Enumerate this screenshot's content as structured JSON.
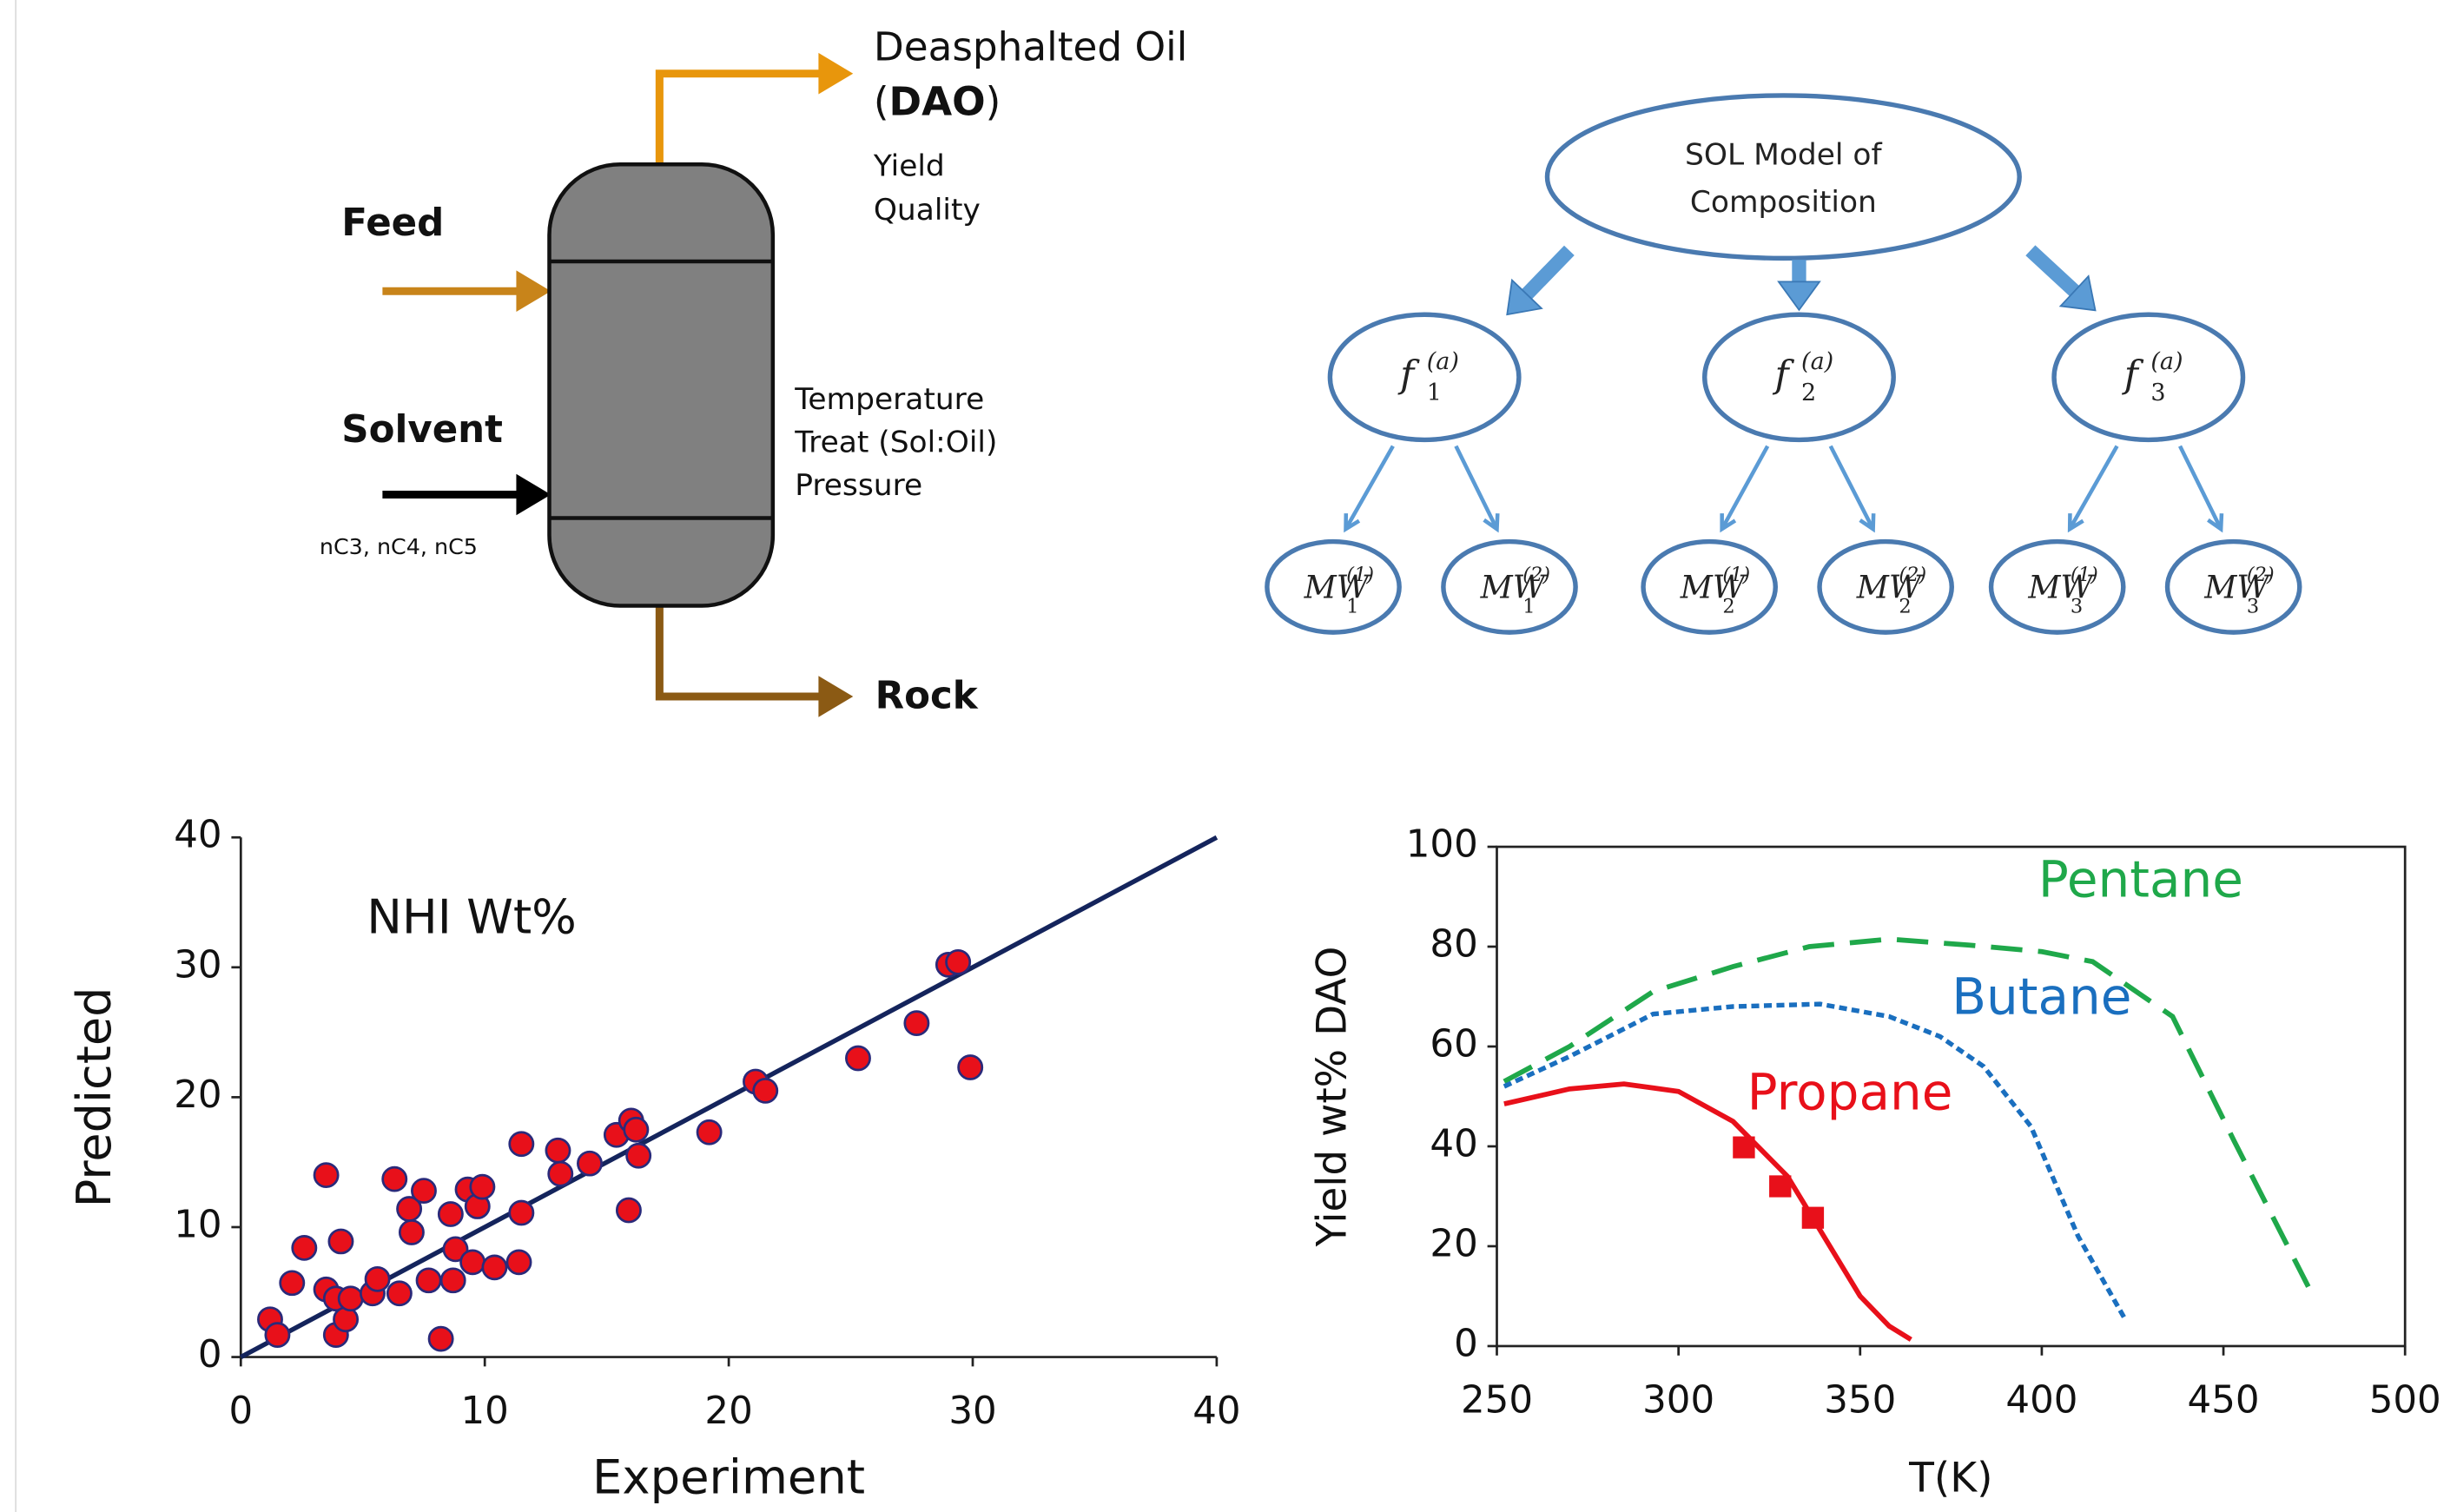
{
  "process": {
    "product_lines": [
      "Deasphalted Oil",
      "(",
      "DAO",
      ")"
    ],
    "product_props": [
      "Yield",
      "Quality"
    ],
    "feed": "Feed",
    "solvent": "Solvent",
    "solvent_types": "nC3, nC4, nC5",
    "conditions": [
      "Temperature",
      "Treat (Sol:Oil)",
      "Pressure"
    ],
    "bottom": "Rock"
  },
  "tree": {
    "root": [
      "SOL Model of",
      "Composition"
    ],
    "fractions": [
      {
        "base": "f",
        "sub": "1",
        "sup": "(a)",
        "children": [
          {
            "base": "MW",
            "sub": "1",
            "sup": "(1)"
          },
          {
            "base": "MW",
            "sub": "1",
            "sup": "(2)"
          }
        ]
      },
      {
        "base": "f",
        "sub": "2",
        "sup": "(a)",
        "children": [
          {
            "base": "MW",
            "sub": "2",
            "sup": "(1)"
          },
          {
            "base": "MW",
            "sub": "2",
            "sup": "(2)"
          }
        ]
      },
      {
        "base": "f",
        "sub": "3",
        "sup": "(a)",
        "children": [
          {
            "base": "MW",
            "sub": "3",
            "sup": "(1)"
          },
          {
            "base": "MW",
            "sub": "3",
            "sup": "(2)"
          }
        ]
      }
    ]
  },
  "chart_data": [
    {
      "type": "scatter",
      "annotation": "NHI Wt%",
      "x_label": "Experiment",
      "y_label": "Predicted",
      "x": [
        1.2,
        1.5,
        2.1,
        2.6,
        3.5,
        3.5,
        3.9,
        4.1,
        3.9,
        4.3,
        4.5,
        5.4,
        5.6,
        6.3,
        6.5,
        6.9,
        7.0,
        7.5,
        7.7,
        8.2,
        8.6,
        8.7,
        8.8,
        9.3,
        9.5,
        9.7,
        9.9,
        10.4,
        11.4,
        11.5,
        11.5,
        13.0,
        13.1,
        14.3,
        15.4,
        16.0,
        16.2,
        15.9,
        16.3,
        19.2,
        21.1,
        21.5,
        25.3,
        27.7,
        29.0,
        29.4,
        29.9
      ],
      "values": [
        2.9,
        1.7,
        5.7,
        8.4,
        14.0,
        5.2,
        4.5,
        8.9,
        1.7,
        2.9,
        4.5,
        4.9,
        6.0,
        13.7,
        4.9,
        11.4,
        9.6,
        12.8,
        5.9,
        1.4,
        11.0,
        5.9,
        8.3,
        12.9,
        7.3,
        11.6,
        13.1,
        6.9,
        7.3,
        11.1,
        16.4,
        15.9,
        14.1,
        14.9,
        17.1,
        18.2,
        17.5,
        11.3,
        15.5,
        17.3,
        21.2,
        20.5,
        23.0,
        25.7,
        30.2,
        30.4,
        22.3
      ],
      "color": "#e8101a",
      "edge_color": "#2a2a7a",
      "reference_line": {
        "x": [
          0,
          40
        ],
        "values": [
          0,
          40
        ],
        "color": "#14245c"
      },
      "xlim": [
        0,
        40
      ],
      "xticks": [
        0,
        10,
        20,
        30,
        40
      ],
      "ylim": [
        0,
        40
      ],
      "yticks": [
        0,
        10,
        20,
        30,
        40
      ]
    },
    {
      "type": "line",
      "x_label": "T(K)",
      "y_label": "Yield wt% DAO",
      "series": [
        {
          "name": "Pentane",
          "color": "#1fa84a",
          "dash": "dashed",
          "x": [
            252,
            270,
            293,
            315,
            336,
            358,
            380,
            400,
            414,
            436,
            453,
            474
          ],
          "values": [
            53,
            60,
            71,
            76,
            80,
            81.5,
            80.3,
            79,
            77,
            66,
            41,
            11
          ]
        },
        {
          "name": "Butane",
          "color": "#1a6fbf",
          "dash": "dotted",
          "x": [
            252,
            270,
            293,
            315,
            339,
            358,
            372,
            384,
            397,
            410,
            423
          ],
          "values": [
            52,
            58,
            66.5,
            68,
            68.5,
            66,
            62,
            56,
            44,
            22,
            5.3
          ]
        },
        {
          "name": "Propane",
          "color": "#e8101a",
          "dash": "solid",
          "x": [
            252,
            270,
            285,
            300,
            315,
            330,
            340,
            350,
            358,
            364
          ],
          "values": [
            48.5,
            51.5,
            52.5,
            51,
            45,
            34,
            22,
            10,
            4,
            1.3
          ],
          "markers": {
            "x": [
              318,
              328,
              337
            ],
            "values": [
              39.8,
              32.0,
              25.7
            ]
          }
        }
      ],
      "xlim": [
        250,
        500
      ],
      "xticks": [
        250,
        300,
        350,
        400,
        450,
        500
      ],
      "ylim": [
        0,
        100
      ],
      "yticks": [
        0,
        20,
        40,
        60,
        80,
        100
      ]
    }
  ]
}
